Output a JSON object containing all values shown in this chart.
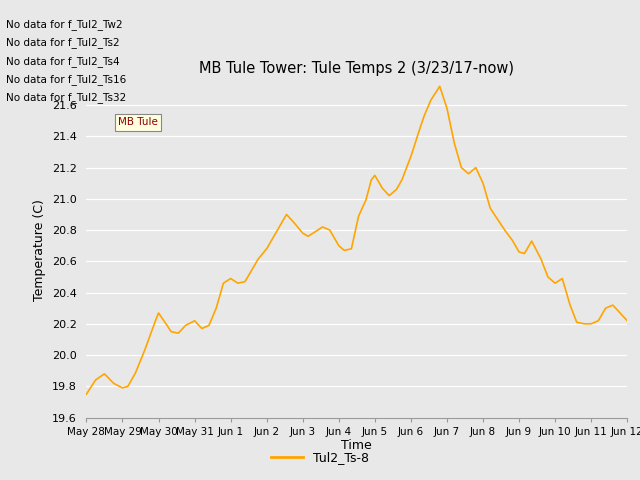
{
  "title": "MB Tule Tower: Tule Temps 2 (3/23/17-now)",
  "xlabel": "Time",
  "ylabel": "Temperature (C)",
  "legend_label": "Tul2_Ts-8",
  "line_color": "#FFA500",
  "line_width": 1.2,
  "bg_color": "#E8E8E8",
  "ylim": [
    19.6,
    21.75
  ],
  "yticks": [
    19.6,
    19.8,
    20.0,
    20.2,
    20.4,
    20.6,
    20.8,
    21.0,
    21.2,
    21.4,
    21.6
  ],
  "no_data_labels": [
    "No data for f_Tul2_Tw2",
    "No data for f_Tul2_Ts2",
    "No data for f_Tul2_Ts4",
    "No data for f_Tul2_Ts16",
    "No data for f_Tul2_Ts32"
  ],
  "tooltip_label": "MB Tule",
  "xtick_labels": [
    "May 28",
    "May 29",
    "May 30",
    "May 31",
    "Jun 1",
    "Jun 2",
    "Jun 3",
    "Jun 4",
    "Jun 5",
    "Jun 6",
    "Jun 7",
    "Jun 8",
    "Jun 9",
    "Jun 10",
    "Jun 11",
    "Jun 12"
  ],
  "key_t": [
    0.0,
    0.25,
    0.5,
    0.75,
    1.0,
    1.15,
    1.35,
    1.6,
    1.85,
    2.0,
    2.15,
    2.35,
    2.55,
    2.75,
    3.0,
    3.2,
    3.4,
    3.6,
    3.8,
    4.0,
    4.2,
    4.4,
    4.6,
    4.75,
    5.0,
    5.2,
    5.35,
    5.55,
    5.75,
    6.0,
    6.15,
    6.35,
    6.55,
    6.75,
    7.0,
    7.15,
    7.35,
    7.55,
    7.75,
    7.9,
    8.0,
    8.2,
    8.4,
    8.6,
    8.75,
    9.0,
    9.15,
    9.35,
    9.55,
    9.8,
    10.0,
    10.2,
    10.4,
    10.6,
    10.8,
    11.0,
    11.2,
    11.4,
    11.6,
    11.8,
    12.0,
    12.15,
    12.35,
    12.6,
    12.8,
    13.0,
    13.2,
    13.4,
    13.6,
    13.8,
    14.0,
    14.2,
    14.4,
    14.6,
    14.8,
    15.0
  ],
  "key_y": [
    19.75,
    19.84,
    19.88,
    19.82,
    19.79,
    19.8,
    19.88,
    20.02,
    20.18,
    20.27,
    20.22,
    20.15,
    20.14,
    20.19,
    20.22,
    20.17,
    20.19,
    20.3,
    20.46,
    20.49,
    20.46,
    20.47,
    20.55,
    20.61,
    20.68,
    20.76,
    20.82,
    20.9,
    20.85,
    20.78,
    20.76,
    20.79,
    20.82,
    20.8,
    20.7,
    20.67,
    20.68,
    20.89,
    20.99,
    21.12,
    21.15,
    21.07,
    21.02,
    21.06,
    21.12,
    21.27,
    21.38,
    21.52,
    21.63,
    21.72,
    21.58,
    21.36,
    21.2,
    21.16,
    21.2,
    21.1,
    20.94,
    20.87,
    20.8,
    20.74,
    20.66,
    20.65,
    20.73,
    20.62,
    20.5,
    20.46,
    20.49,
    20.33,
    20.21,
    20.2,
    20.2,
    20.22,
    20.3,
    20.32,
    20.27,
    20.22
  ]
}
